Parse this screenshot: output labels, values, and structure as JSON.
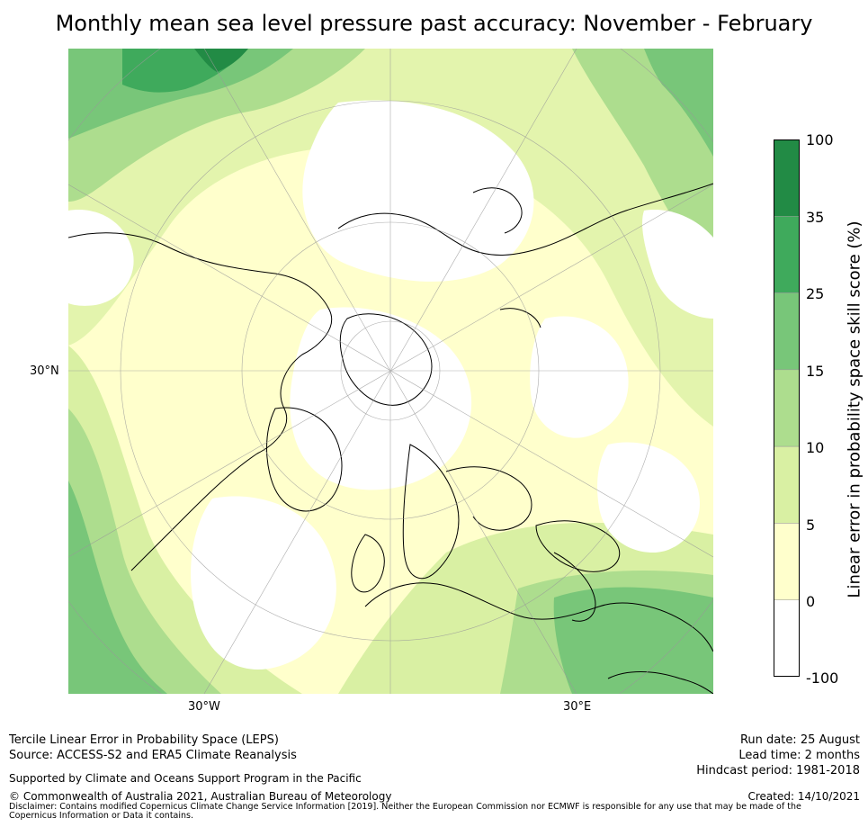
{
  "title": "Monthly mean sea level pressure past accuracy: November - February",
  "map": {
    "lat_label": "30°N",
    "lon_labels": [
      "30°W",
      "30°E"
    ]
  },
  "colorbar": {
    "label": "Linear error in probability space skill score (%)",
    "ticks": [
      "100",
      "35",
      "25",
      "15",
      "10",
      "5",
      "0",
      "-100"
    ],
    "colors": [
      "#228b45",
      "#3faa5c",
      "#78c679",
      "#addd8e",
      "#d9f0a3",
      "#ffffcc",
      "#ffffff"
    ]
  },
  "footer": {
    "method": "Tercile Linear Error in Probability Space (LEPS)",
    "source": "Source: ACCESS-S2 and ERA5 Climate Reanalysis",
    "support": "Supported by Climate and Oceans Support Program in the Pacific",
    "copyright": "© Commonwealth of Australia 2021, Australian Bureau of Meteorology",
    "disclaimer": "Disclaimer: Contains modified Copernicus Climate Change Service Information [2019]. Neither the European Commission nor ECMWF is responsible for any use that may be made of the Copernicus Information or Data it contains.",
    "run_date": "Run date: 25 August",
    "lead_time": "Lead time: 2 months",
    "hindcast": "Hindcast period: 1981-2018",
    "created": "Created: 14/10/2021"
  }
}
